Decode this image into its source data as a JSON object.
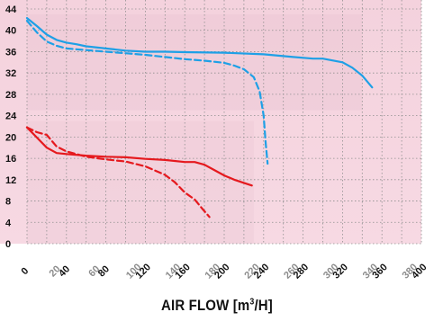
{
  "chart_data": {
    "type": "line",
    "xlabel_main": "AIR FLOW [m",
    "xlabel_sup": "3",
    "xlabel_end": "/H]",
    "xlim": [
      0,
      400
    ],
    "ylim": [
      0,
      44
    ],
    "x_ticks": [
      "0",
      "20",
      "40",
      "60",
      "80",
      "100",
      "120",
      "140",
      "160",
      "180",
      "200",
      "220",
      "240",
      "260",
      "280",
      "300",
      "320",
      "340",
      "360",
      "380",
      "400"
    ],
    "y_ticks": [
      "0",
      "4",
      "8",
      "12",
      "16",
      "20",
      "24",
      "28",
      "32",
      "36",
      "40",
      "44"
    ],
    "grid": true,
    "series": [
      {
        "color": "#1ea0e6",
        "style": "solid",
        "points": [
          [
            0,
            42.3
          ],
          [
            10,
            40.8
          ],
          [
            20,
            39.2
          ],
          [
            30,
            38.2
          ],
          [
            40,
            37.7
          ],
          [
            50,
            37.4
          ],
          [
            60,
            37.0
          ],
          [
            80,
            36.6
          ],
          [
            100,
            36.2
          ],
          [
            120,
            36.0
          ],
          [
            140,
            36.0
          ],
          [
            160,
            35.9
          ],
          [
            200,
            35.8
          ],
          [
            240,
            35.5
          ],
          [
            270,
            35.0
          ],
          [
            290,
            34.7
          ],
          [
            300,
            34.7
          ],
          [
            320,
            34.0
          ],
          [
            330,
            33.0
          ],
          [
            340,
            31.5
          ],
          [
            350,
            29.3
          ]
        ]
      },
      {
        "color": "#1ea0e6",
        "style": "dashed",
        "points": [
          [
            0,
            41.8
          ],
          [
            10,
            39.6
          ],
          [
            20,
            37.9
          ],
          [
            30,
            37.1
          ],
          [
            40,
            36.6
          ],
          [
            60,
            36.3
          ],
          [
            80,
            36.0
          ],
          [
            100,
            35.7
          ],
          [
            120,
            35.4
          ],
          [
            140,
            35.0
          ],
          [
            160,
            34.6
          ],
          [
            180,
            34.3
          ],
          [
            200,
            33.9
          ],
          [
            210,
            33.4
          ],
          [
            220,
            32.7
          ],
          [
            230,
            31.2
          ],
          [
            236,
            28.5
          ],
          [
            240,
            24.0
          ],
          [
            242,
            19.0
          ],
          [
            244,
            15.0
          ]
        ]
      },
      {
        "color": "#e5191e",
        "style": "solid",
        "points": [
          [
            0,
            21.8
          ],
          [
            10,
            19.9
          ],
          [
            20,
            18.0
          ],
          [
            30,
            17.0
          ],
          [
            40,
            16.8
          ],
          [
            60,
            16.5
          ],
          [
            80,
            16.3
          ],
          [
            100,
            16.2
          ],
          [
            120,
            15.9
          ],
          [
            140,
            15.7
          ],
          [
            160,
            15.3
          ],
          [
            170,
            15.3
          ],
          [
            180,
            14.8
          ],
          [
            190,
            13.8
          ],
          [
            200,
            12.8
          ],
          [
            210,
            12.0
          ],
          [
            220,
            11.4
          ],
          [
            228,
            10.9
          ]
        ]
      },
      {
        "color": "#e5191e",
        "style": "dashed",
        "points": [
          [
            0,
            21.8
          ],
          [
            10,
            20.9
          ],
          [
            20,
            20.4
          ],
          [
            30,
            18.2
          ],
          [
            40,
            17.3
          ],
          [
            50,
            16.8
          ],
          [
            60,
            16.3
          ],
          [
            80,
            15.8
          ],
          [
            100,
            15.4
          ],
          [
            120,
            14.5
          ],
          [
            130,
            13.7
          ],
          [
            140,
            12.9
          ],
          [
            150,
            11.5
          ],
          [
            160,
            9.6
          ],
          [
            170,
            8.3
          ],
          [
            178,
            6.5
          ],
          [
            185,
            5.0
          ]
        ]
      }
    ]
  }
}
